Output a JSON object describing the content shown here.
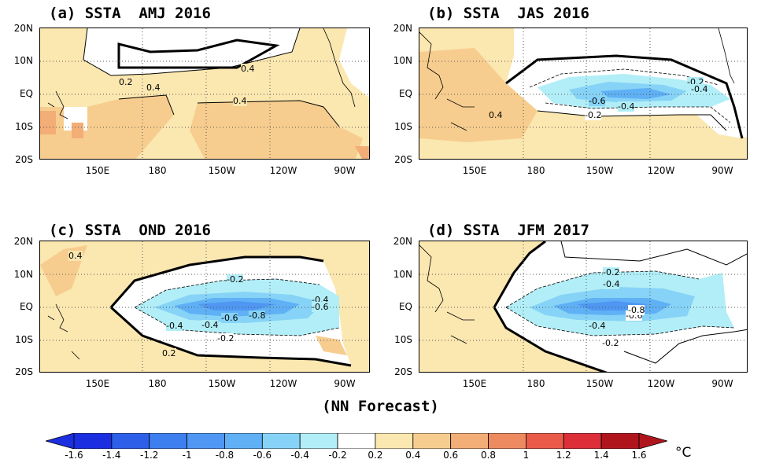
{
  "panels": [
    {
      "id": "a",
      "title": "(a) SSTA  AMJ 2016"
    },
    {
      "id": "b",
      "title": "(b) SSTA  JAS 2016"
    },
    {
      "id": "c",
      "title": "(c) SSTA  OND 2016"
    },
    {
      "id": "d",
      "title": "(d) SSTA  JFM 2017"
    }
  ],
  "lat_labels": [
    "20N",
    "10N",
    "EQ",
    "10S",
    "20S"
  ],
  "lon_labels": [
    "150E",
    "180",
    "150W",
    "120W",
    "90W"
  ],
  "contour_labels": {
    "a": [
      "0.4",
      "0.2",
      "0.4",
      "0.4"
    ],
    "b": [
      "-0.2",
      "-0.4",
      "-0.6",
      "-0.4",
      "-0.2",
      "0.4"
    ],
    "c": [
      "0.4",
      "-0.2",
      "-0.4",
      "-0.6",
      "-0.8",
      "-0.4",
      "-0.2",
      "-0.4",
      "-0.6",
      "0.2"
    ],
    "d": [
      "-0.2",
      "-0.4",
      "-0.6",
      "-0.4",
      "-0.2",
      "-0.8"
    ]
  },
  "footer": "(NN Forecast)",
  "colorbar": {
    "labels": [
      "-1.6",
      "-1.4",
      "-1.2",
      "-1",
      "-0.8",
      "-0.6",
      "-0.4",
      "-0.2",
      "0.2",
      "0.4",
      "0.6",
      "0.8",
      "1",
      "1.2",
      "1.4",
      "1.6"
    ],
    "colors": [
      "#1b2ee0",
      "#2d5fe8",
      "#3e7ff0",
      "#4f97f2",
      "#5fb0f5",
      "#86d3f7",
      "#b2eef7",
      "#ffffff",
      "#fbe7b0",
      "#f7cd8f",
      "#f3ad76",
      "#ee8a60",
      "#ea5a48",
      "#dc2f38",
      "#b0151e"
    ],
    "unit": "°C"
  },
  "theme": {
    "warm_light": "#fbe7b0",
    "warm_mid": "#f7cd8f",
    "warm_dark": "#f3ad76",
    "cool_1": "#b2eef7",
    "cool_2": "#86d3f7",
    "cool_3": "#5fb0f5",
    "cool_4": "#4f97f2"
  }
}
